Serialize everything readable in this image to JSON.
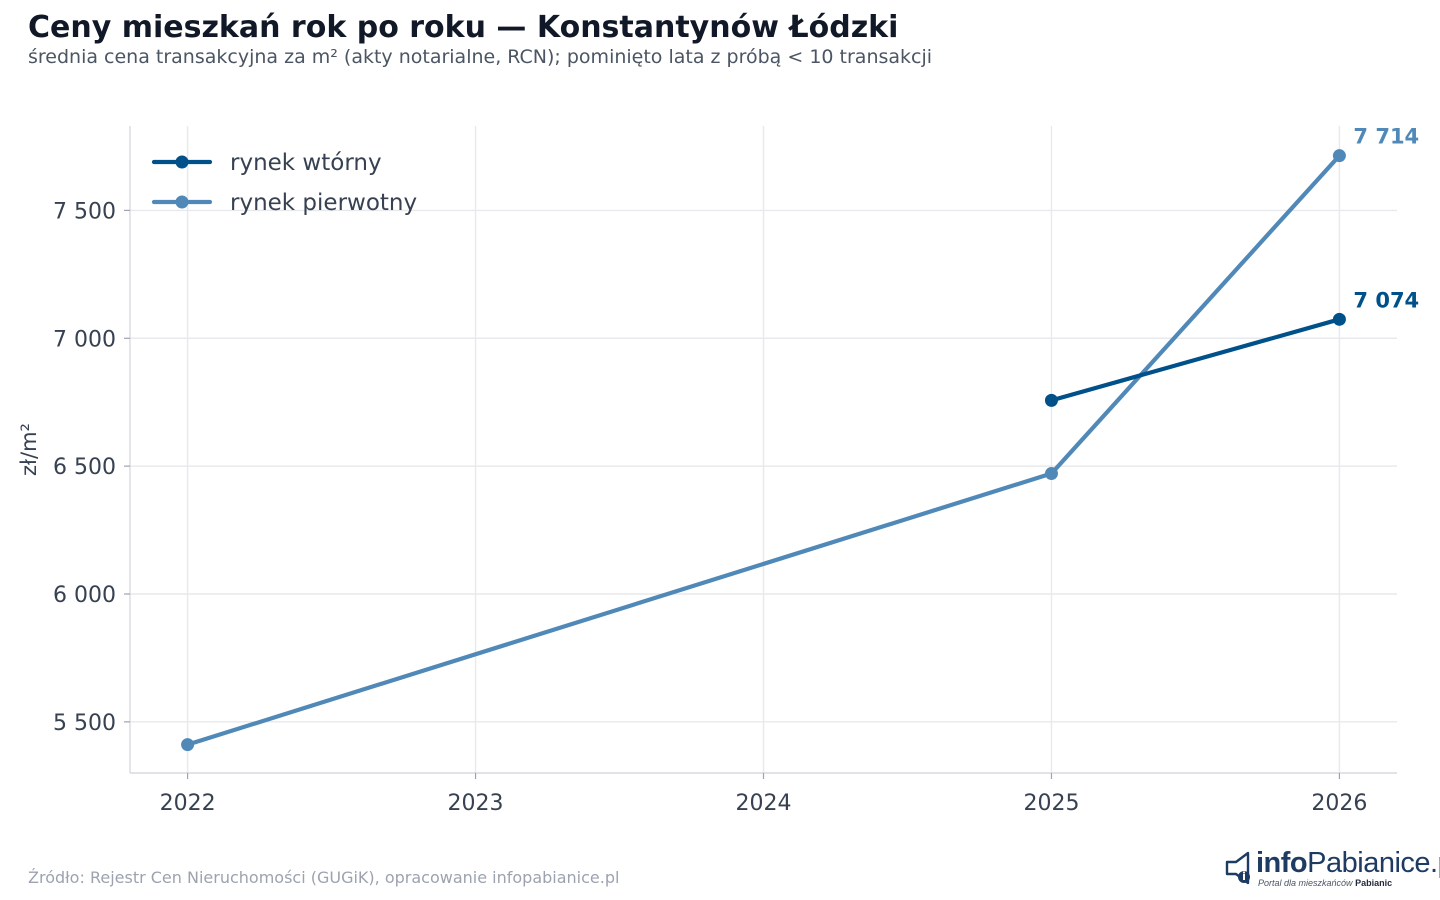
{
  "header": {
    "title": "Ceny mieszkań rok po roku — Konstantynów Łódzki",
    "subtitle": "średnia cena transakcyjna za m² (akty notarialne, RCN); pominięto lata z próbą < 10 transakcji"
  },
  "footer": {
    "source": "Źródło: Rejestr Cen Nieruchomości (GUGiK), opracowanie infopabianice.pl"
  },
  "logo": {
    "name_bold": "info",
    "name_regular": "Pabianice.pl",
    "tagline": "Portal dla mieszkańców",
    "tagline_bold": "Pabianic",
    "icon": "megaphone-icon"
  },
  "chart_data": {
    "type": "line",
    "title": "Ceny mieszkań rok po roku — Konstantynów Łódzki",
    "subtitle": "średnia cena transakcyjna za m² (akty notarialne, RCN); pominięto lata z próbą < 10 transakcji",
    "xlabel": "",
    "ylabel": "zł/m²",
    "xlim": [
      2021.8,
      2026.2
    ],
    "ylim": [
      5300,
      7830
    ],
    "x_ticks": [
      2022,
      2023,
      2024,
      2025,
      2026
    ],
    "x_tick_labels": [
      "2022",
      "2023",
      "2024",
      "2025",
      "2026"
    ],
    "y_ticks": [
      5500,
      6000,
      6500,
      7000,
      7500
    ],
    "y_tick_labels": [
      "5 500",
      "6 000",
      "6 500",
      "7 000",
      "7 500"
    ],
    "grid": true,
    "legend_position": "top-left",
    "series": [
      {
        "name": "rynek wtórny",
        "color": "#00508a",
        "x": [
          2025,
          2026
        ],
        "values": [
          6757,
          7074
        ],
        "end_label": "7 074"
      },
      {
        "name": "rynek pierwotny",
        "color": "#5089b8",
        "x": [
          2022,
          2025,
          2026
        ],
        "values": [
          5411,
          6471,
          7714
        ],
        "end_label": "7 714"
      }
    ]
  }
}
